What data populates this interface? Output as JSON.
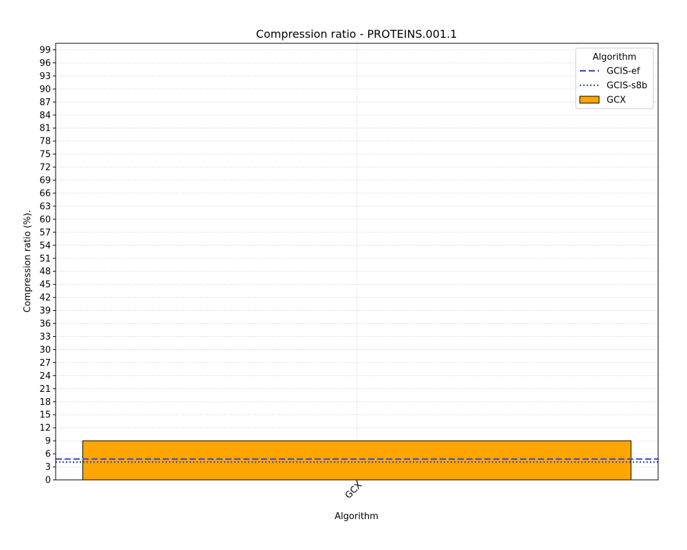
{
  "chart_data": {
    "type": "bar",
    "title": "Compression ratio -  PROTEINS.001.1",
    "xlabel": "Algorithm",
    "ylabel": "Compression ratio (%).",
    "categories": [
      "GCX"
    ],
    "series": [
      {
        "name": "GCX",
        "values": [
          9.0
        ],
        "color": "#ffa500",
        "edgecolor": "#000000"
      }
    ],
    "reference_lines": [
      {
        "name": "GCIS-ef",
        "value": 4.8,
        "style": "dashed",
        "color": "#3b4cc0"
      },
      {
        "name": "GCIS-s8b",
        "value": 4.1,
        "style": "dotted",
        "color": "#3b4cc0"
      }
    ],
    "ylim": [
      0,
      100.5
    ],
    "yticks": [
      0,
      3,
      6,
      9,
      12,
      15,
      18,
      21,
      24,
      27,
      30,
      33,
      36,
      39,
      42,
      45,
      48,
      51,
      54,
      57,
      60,
      63,
      66,
      69,
      72,
      75,
      78,
      81,
      84,
      87,
      90,
      93,
      96,
      99
    ],
    "xtick_rotation": 45,
    "grid": true,
    "legend": {
      "title": "Algorithm",
      "placement": "top-right",
      "entries": [
        "GCIS-ef",
        "GCIS-s8b",
        "GCX"
      ]
    }
  }
}
